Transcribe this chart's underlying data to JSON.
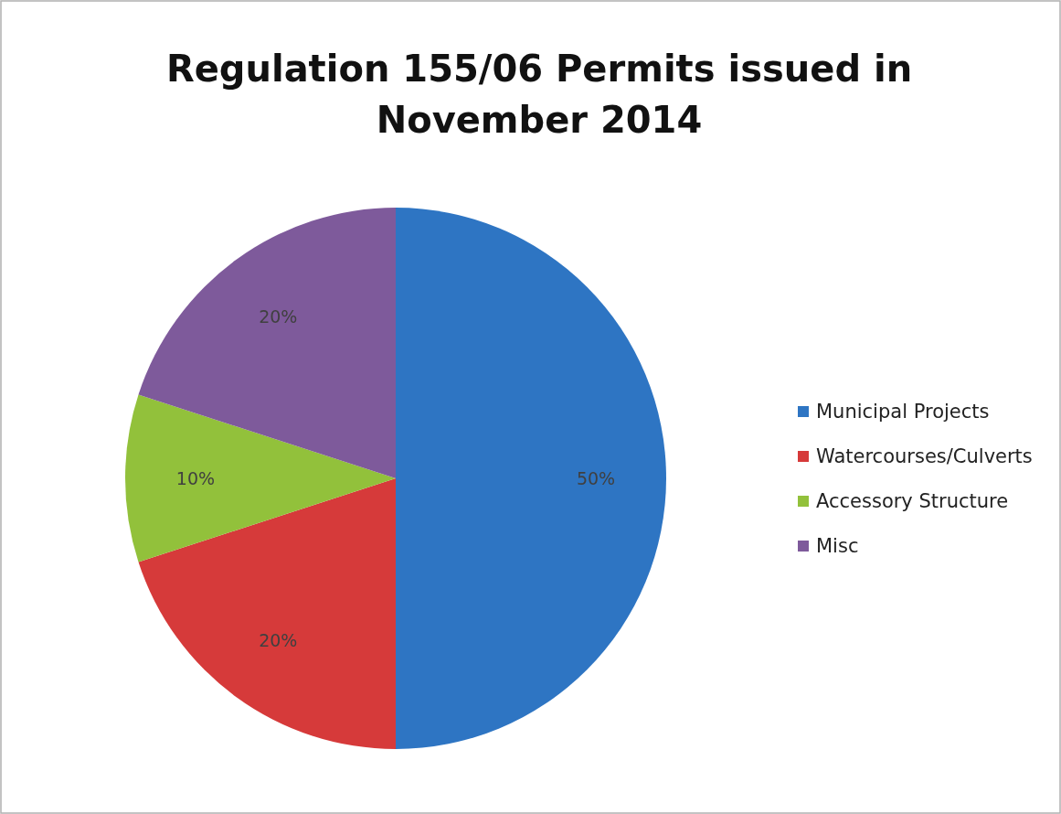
{
  "chart_data": {
    "type": "pie",
    "title": "Regulation 155/06 Permits issued in November 2014",
    "categories": [
      "Municipal Projects",
      "Watercourses/Culverts",
      "Accessory Structure",
      "Misc"
    ],
    "values": [
      50,
      20,
      10,
      20
    ],
    "value_labels": [
      "50%",
      "20%",
      "10%",
      "20%"
    ],
    "colors": [
      "#2e75c3",
      "#d63a3a",
      "#92c13b",
      "#7e5a9b"
    ],
    "legend": "right"
  }
}
